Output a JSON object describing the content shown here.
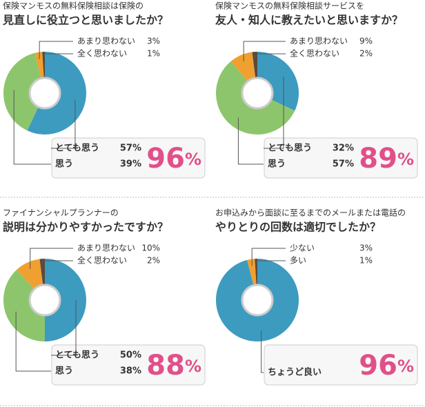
{
  "chart_data": [
    {
      "type": "donut",
      "title": "保険マンモスの無料保険相談は保険の",
      "subtitle": "見直しに役立つと思いましたか？",
      "categories": [
        "とても思う",
        "思う",
        "あまり思わない",
        "全く思わない"
      ],
      "values": [
        57,
        39,
        3,
        1
      ],
      "value_labels": [
        "57%",
        "39%",
        "3%",
        "1%"
      ],
      "colors": [
        "#3d9bc0",
        "#8dc56c",
        "#f0a030",
        "#5b4a3b"
      ],
      "summary": 96,
      "summary_unit": "%"
    },
    {
      "type": "donut",
      "title": "保険マンモスの無料保険相談サービスを",
      "subtitle": "友人・知人に教えたいと思いますか？",
      "categories": [
        "とても思う",
        "思う",
        "あまり思わない",
        "全く思わない"
      ],
      "values": [
        32,
        57,
        9,
        2
      ],
      "value_labels": [
        "32%",
        "57%",
        "9%",
        "2%"
      ],
      "colors": [
        "#3d9bc0",
        "#8dc56c",
        "#f0a030",
        "#5b4a3b"
      ],
      "summary": 89,
      "summary_unit": "%"
    },
    {
      "type": "donut",
      "title": "ファイナンシャルプランナーの",
      "subtitle": "説明は分かりやすかったですか？",
      "categories": [
        "とても思う",
        "思う",
        "あまり思わない",
        "全く思わない"
      ],
      "values": [
        50,
        38,
        10,
        2
      ],
      "value_labels": [
        "50%",
        "38%",
        "10%",
        "2%"
      ],
      "colors": [
        "#3d9bc0",
        "#8dc56c",
        "#f0a030",
        "#5b4a3b"
      ],
      "summary": 88,
      "summary_unit": "%"
    },
    {
      "type": "donut",
      "title": "お申込みから面談に至るまでのメールまたは電話の",
      "subtitle": "やりとりの回数は適切でしたか？",
      "categories": [
        "ちょうど良い",
        "少ない",
        "多い"
      ],
      "values": [
        96,
        3,
        1
      ],
      "value_labels": [
        null,
        "3%",
        "1%"
      ],
      "colors": [
        "#3d9bc0",
        "#f0a030",
        "#5b4a3b"
      ],
      "summary": 96,
      "summary_unit": "%"
    }
  ]
}
